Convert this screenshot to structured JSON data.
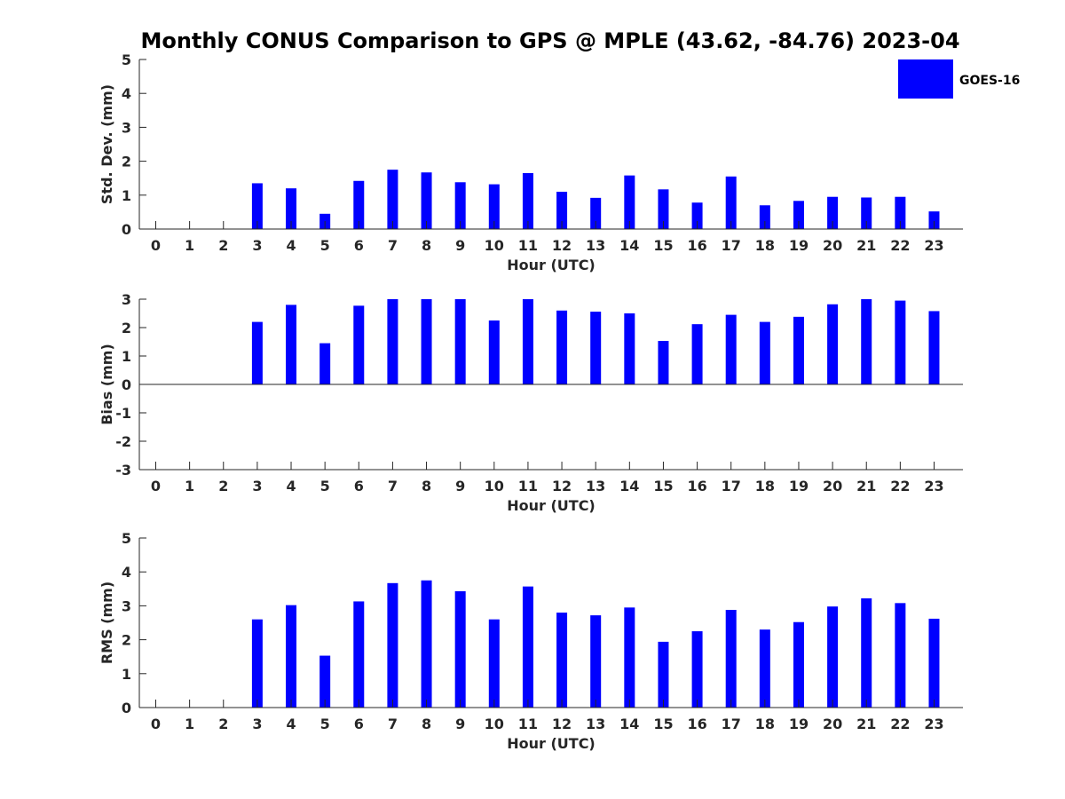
{
  "chart_data": {
    "title": "Monthly CONUS Comparison to GPS @ MPLE (43.62, -84.76) 2023-04",
    "legend": {
      "label": "GOES-16",
      "color": "#0000ff",
      "placement": "top-right"
    },
    "panels": [
      {
        "type": "bar",
        "ylabel": "Std. Dev. (mm)",
        "xlabel": "Hour (UTC)",
        "ylim": [
          0,
          5
        ],
        "yticks": [
          0,
          1,
          2,
          3,
          4,
          5
        ],
        "x": [
          0,
          1,
          2,
          3,
          4,
          5,
          6,
          7,
          8,
          9,
          10,
          11,
          12,
          13,
          14,
          15,
          16,
          17,
          18,
          19,
          20,
          21,
          22,
          23
        ],
        "values": [
          null,
          null,
          null,
          1.35,
          1.2,
          0.45,
          1.42,
          1.75,
          1.67,
          1.38,
          1.32,
          1.65,
          1.1,
          0.92,
          1.58,
          1.17,
          0.78,
          1.55,
          0.7,
          0.83,
          0.95,
          0.93,
          0.95,
          0.52
        ]
      },
      {
        "type": "bar",
        "ylabel": "Bias (mm)",
        "xlabel": "Hour (UTC)",
        "ylim": [
          -3,
          3
        ],
        "yticks": [
          -3,
          -2,
          -1,
          0,
          1,
          2,
          3
        ],
        "x": [
          0,
          1,
          2,
          3,
          4,
          5,
          6,
          7,
          8,
          9,
          10,
          11,
          12,
          13,
          14,
          15,
          16,
          17,
          18,
          19,
          20,
          21,
          22,
          23
        ],
        "values": [
          null,
          null,
          null,
          2.2,
          2.8,
          1.45,
          2.77,
          3.0,
          3.0,
          3.0,
          2.25,
          3.0,
          2.6,
          2.56,
          2.5,
          1.53,
          2.12,
          2.45,
          2.2,
          2.38,
          2.82,
          3.0,
          2.95,
          2.58
        ]
      },
      {
        "type": "bar",
        "ylabel": "RMS (mm)",
        "xlabel": "Hour (UTC)",
        "ylim": [
          0,
          5
        ],
        "yticks": [
          0,
          1,
          2,
          3,
          4,
          5
        ],
        "x": [
          0,
          1,
          2,
          3,
          4,
          5,
          6,
          7,
          8,
          9,
          10,
          11,
          12,
          13,
          14,
          15,
          16,
          17,
          18,
          19,
          20,
          21,
          22,
          23
        ],
        "values": [
          null,
          null,
          null,
          2.6,
          3.02,
          1.53,
          3.13,
          3.67,
          3.75,
          3.43,
          2.6,
          3.57,
          2.8,
          2.72,
          2.95,
          1.94,
          2.25,
          2.88,
          2.3,
          2.52,
          2.98,
          3.22,
          3.08,
          2.62
        ]
      }
    ]
  }
}
